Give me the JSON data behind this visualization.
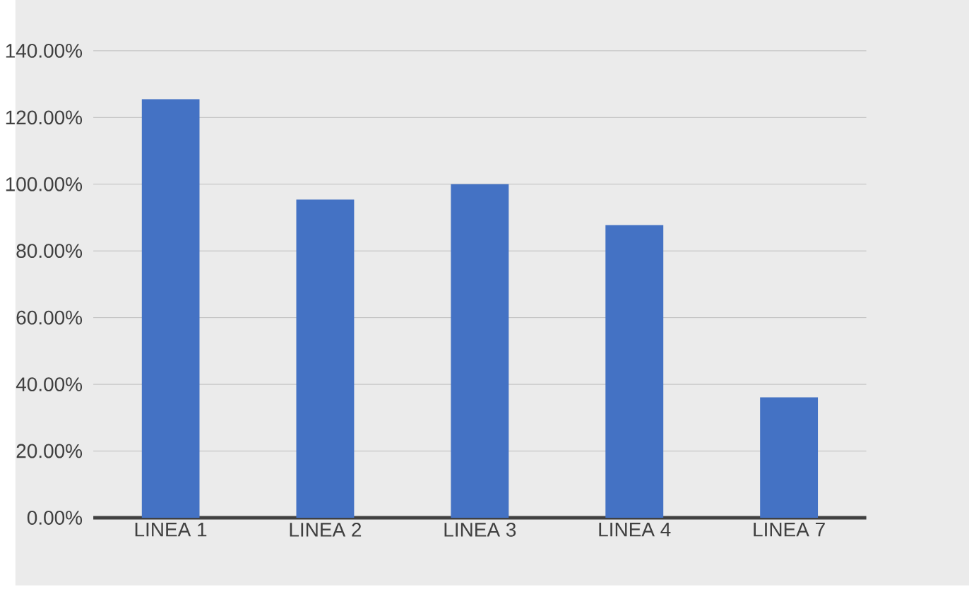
{
  "chart_data": {
    "type": "bar",
    "categories": [
      "LINEA 1",
      "LINEA 2",
      "LINEA 3",
      "LINEA 4",
      "LINEA 7"
    ],
    "values": [
      125.5,
      95.4,
      100,
      87.7,
      36.1
    ],
    "color": "#4472c4",
    "ylim": [
      0,
      140
    ],
    "yticks": [
      {
        "value": 0,
        "label": "0.00%"
      },
      {
        "value": 20,
        "label": "20.00%"
      },
      {
        "value": 40,
        "label": "40.00%"
      },
      {
        "value": 60,
        "label": "60.00%"
      },
      {
        "value": 80,
        "label": "80.00%"
      },
      {
        "value": 100,
        "label": "100.00%"
      },
      {
        "value": 120,
        "label": "120.00%"
      },
      {
        "value": 140,
        "label": "140.00%"
      }
    ],
    "grid": "y"
  }
}
